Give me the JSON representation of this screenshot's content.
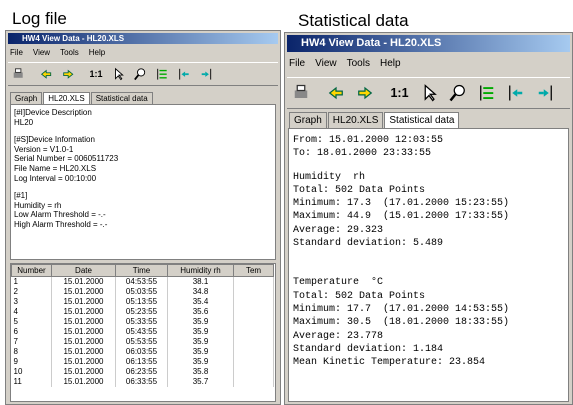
{
  "captions": {
    "left": "Log file",
    "right": "Statistical data"
  },
  "log_window": {
    "title": "HW4 View Data - HL20.XLS",
    "menu": [
      "File",
      "View",
      "Tools",
      "Help"
    ],
    "toolbar_label": "1:1",
    "tabs": [
      "Graph",
      "HL20.XLS",
      "Statistical data"
    ],
    "text_blocks": [
      [
        "[#I]Device Description",
        "HL20"
      ],
      [
        "[#S]Device Information",
        "Version = V1.0-1",
        "Serial Number = 0060511723",
        "File Name = HL20.XLS",
        "Log Interval = 00:10:00"
      ],
      [
        "[#1]",
        "Humidity = rh",
        "Low Alarm Threshold = -.-",
        "High Alarm Threshold = -.-"
      ]
    ],
    "table": {
      "columns": [
        "Number",
        "Date",
        "Time",
        "Humidity rh",
        "Tem"
      ],
      "rows": [
        [
          "1",
          "15.01.2000",
          "04:53:55",
          "38.1"
        ],
        [
          "2",
          "15.01.2000",
          "05:03:55",
          "34.8"
        ],
        [
          "3",
          "15.01.2000",
          "05:13:55",
          "35.4"
        ],
        [
          "4",
          "15.01.2000",
          "05:23:55",
          "35.6"
        ],
        [
          "5",
          "15.01.2000",
          "05:33:55",
          "35.9"
        ],
        [
          "6",
          "15.01.2000",
          "05:43:55",
          "35.9"
        ],
        [
          "7",
          "15.01.2000",
          "05:53:55",
          "35.9"
        ],
        [
          "8",
          "15.01.2000",
          "06:03:55",
          "35.9"
        ],
        [
          "9",
          "15.01.2000",
          "06:13:55",
          "35.9"
        ],
        [
          "10",
          "15.01.2000",
          "06:23:55",
          "35.8"
        ],
        [
          "11",
          "15.01.2000",
          "06:33:55",
          "35.7"
        ]
      ]
    }
  },
  "stats_window": {
    "title": "HW4 View Data - HL20.XLS",
    "menu": [
      "File",
      "View",
      "Tools",
      "Help"
    ],
    "toolbar_label": "1:1",
    "tabs": [
      "Graph",
      "HL20.XLS",
      "Statistical data"
    ],
    "text_blocks": [
      [
        "From: 15.01.2000 12:03:55",
        "To: 18.01.2000 23:33:55"
      ],
      [
        "Humidity  rh",
        "Total: 502 Data Points",
        "Minimum: 17.3  (17.01.2000 15:23:55)",
        "Maximum: 44.9  (15.01.2000 17:33:55)",
        "Average: 29.323",
        "Standard deviation: 5.489"
      ],
      [
        "Temperature  °C",
        "Total: 502 Data Points",
        "Minimum: 17.7  (17.01.2000 14:53:55)",
        "Maximum: 30.5  (18.01.2000 18:33:55)",
        "Average: 23.778",
        "Standard deviation: 1.184",
        "Mean Kinetic Temperature: 23.854"
      ]
    ]
  }
}
